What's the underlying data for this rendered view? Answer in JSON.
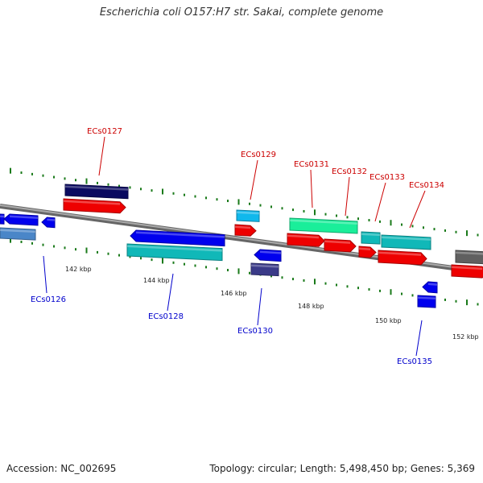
{
  "title": "Escherichia coli O157:H7 str. Sakai, complete genome",
  "footer": {
    "accession": "Accession: NC_002695",
    "summary": "Topology: circular; Length: 5,498,450 bp; Genes: 5,369"
  },
  "colors": {
    "backbone": "#888888",
    "tick": "#1a7a1a",
    "forward_label": "#cc0000",
    "reverse_label": "#0000cc"
  },
  "ticks": [
    {
      "label": "142 kbp"
    },
    {
      "label": "144 kbp"
    },
    {
      "label": "146 kbp"
    },
    {
      "label": "148 kbp"
    },
    {
      "label": "150 kbp"
    },
    {
      "label": "152 kbp"
    }
  ],
  "gene_labels": [
    {
      "text": "ECs0126",
      "strand": "reverse"
    },
    {
      "text": "ECs0127",
      "strand": "forward"
    },
    {
      "text": "ECs0128",
      "strand": "reverse"
    },
    {
      "text": "ECs0129",
      "strand": "forward"
    },
    {
      "text": "ECs0130",
      "strand": "reverse"
    },
    {
      "text": "ECs0131",
      "strand": "forward"
    },
    {
      "text": "ECs0132",
      "strand": "forward"
    },
    {
      "text": "ECs0133",
      "strand": "forward"
    },
    {
      "text": "ECs0134",
      "strand": "forward"
    },
    {
      "text": "ECs0135",
      "strand": "reverse"
    }
  ]
}
